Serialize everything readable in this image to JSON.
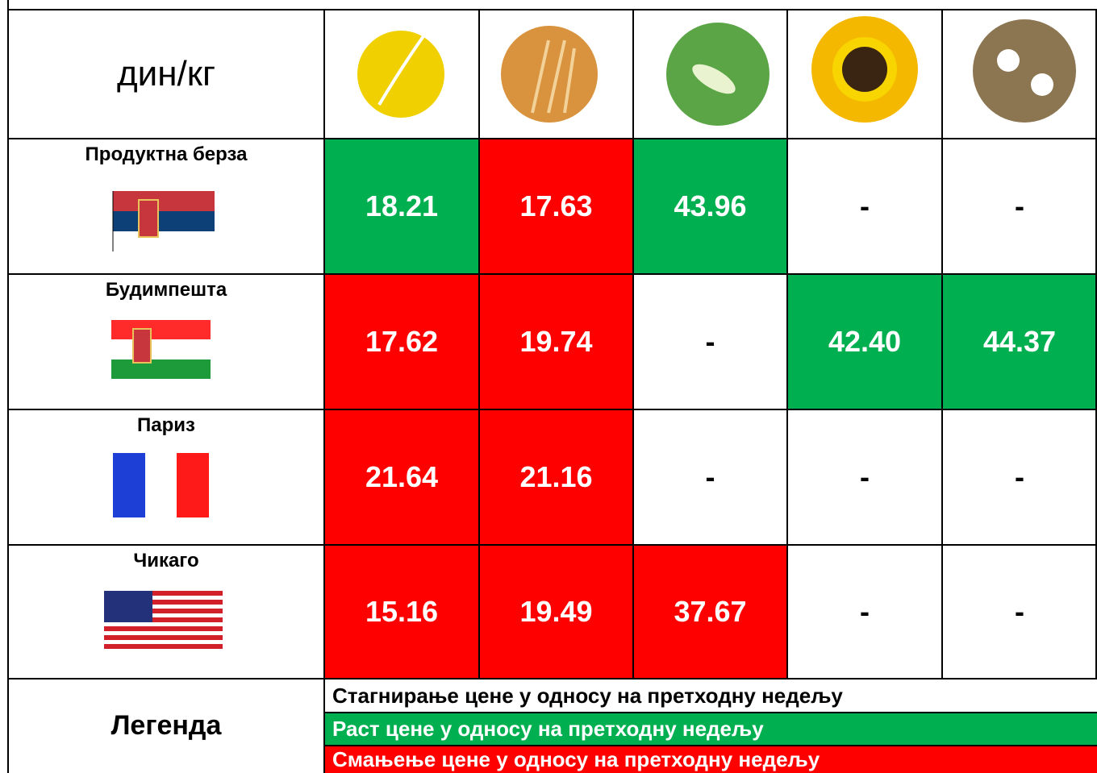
{
  "header": {
    "unit": "дин/кг"
  },
  "rows": [
    {
      "name": "Продуктна берза",
      "cells": [
        "18.21",
        "17.63",
        "43.96",
        "-",
        "-"
      ],
      "colors": [
        "#00b050",
        "#ff0000",
        "#00b050",
        "#ffffff",
        "#ffffff"
      ]
    },
    {
      "name": "Будимпешта",
      "cells": [
        "17.62",
        "19.74",
        "-",
        "42.40",
        "44.37"
      ],
      "colors": [
        "#ff0000",
        "#ff0000",
        "#ffffff",
        "#00b050",
        "#00b050"
      ]
    },
    {
      "name": "Париз",
      "cells": [
        "21.64",
        "21.16",
        "-",
        "-",
        "-"
      ],
      "colors": [
        "#ff0000",
        "#ff0000",
        "#ffffff",
        "#ffffff",
        "#ffffff"
      ]
    },
    {
      "name": "Чикаго",
      "cells": [
        "15.16",
        "19.49",
        "37.67",
        "-",
        "-"
      ],
      "colors": [
        "#ff0000",
        "#ff0000",
        "#ff0000",
        "#ffffff",
        "#ffffff"
      ]
    }
  ],
  "legend_title": "Легенда",
  "legend": [
    {
      "text": "Стагнирање цене у односу на претходну недељу",
      "color": "#ffffff"
    },
    {
      "text": "Раст цене у односу на претходну недељу",
      "color": "#00b050"
    },
    {
      "text": "Смањење цене у односу на претходну недељу",
      "color": "#ff0000"
    }
  ]
}
